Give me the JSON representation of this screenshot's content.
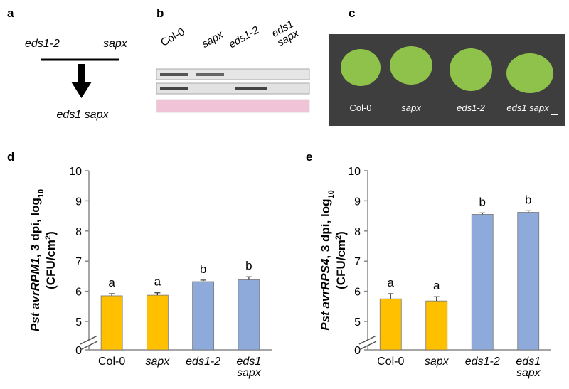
{
  "panels": {
    "a": {
      "label": "a",
      "parent1": "eds1-2",
      "parent2": "sapx",
      "cross": "eds1 sapx"
    },
    "b": {
      "label": "b",
      "lanes": [
        "Col-0",
        "sapx",
        "eds1-2",
        "eds1\nsapx"
      ]
    },
    "c": {
      "label": "c",
      "plants": [
        "Col-0",
        "sapx",
        "eds1-2",
        "eds1 sapx"
      ]
    }
  },
  "chart_data": [
    {
      "type": "bar",
      "panel_label": "d",
      "ylabel": [
        [
          "Pst avrRPM1",
          ", 3 dpi, log",
          "10"
        ],
        [
          "(CFU/cm",
          "2",
          ")"
        ]
      ],
      "categories": [
        "Col-0",
        "sapx",
        "eds1-2",
        "eds1\nsapx"
      ],
      "category_italic": [
        false,
        true,
        true,
        true
      ],
      "values": [
        5.85,
        5.87,
        6.32,
        6.38
      ],
      "errors": [
        0.07,
        0.08,
        0.05,
        0.1
      ],
      "annotations": [
        "a",
        "a",
        "b",
        "b"
      ],
      "colors": [
        "#ffc000",
        "#ffc000",
        "#8eaadb",
        "#8eaadb"
      ],
      "ylim": [
        0,
        10
      ],
      "axis_break": [
        0,
        5
      ],
      "yticks": [
        0,
        5,
        6,
        7,
        8,
        9,
        10
      ]
    },
    {
      "type": "bar",
      "panel_label": "e",
      "ylabel": [
        [
          "Pst avrRPS4",
          ", 3 dpi, log",
          "10"
        ],
        [
          "(CFU/cm",
          "2",
          ")"
        ]
      ],
      "categories": [
        "Col-0",
        "sapx",
        "eds1-2",
        "eds1\nsapx"
      ],
      "category_italic": [
        false,
        true,
        true,
        true
      ],
      "values": [
        5.75,
        5.68,
        8.55,
        8.62
      ],
      "errors": [
        0.17,
        0.14,
        0.05,
        0.05
      ],
      "annotations": [
        "a",
        "a",
        "b",
        "b"
      ],
      "colors": [
        "#ffc000",
        "#ffc000",
        "#8eaadb",
        "#8eaadb"
      ],
      "ylim": [
        0,
        10
      ],
      "axis_break": [
        0,
        5
      ],
      "yticks": [
        0,
        5,
        6,
        7,
        8,
        9,
        10
      ]
    }
  ]
}
